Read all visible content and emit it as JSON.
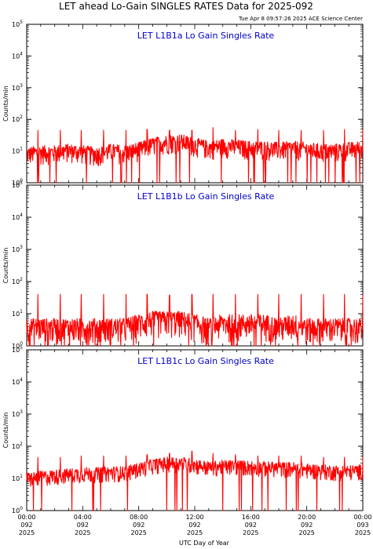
{
  "header": {
    "title": "LET ahead Lo-Gain SINGLES RATES Data for 2025-092",
    "timestamp": "Tue Apr  8 09:57:26 2025 ACE Science Center"
  },
  "xaxis": {
    "label": "UTC Day of Year",
    "ticks": [
      {
        "hour": 0,
        "time": "00:00",
        "doy": "092",
        "year": "2025"
      },
      {
        "hour": 4,
        "time": "04:00",
        "doy": "092",
        "year": "2025"
      },
      {
        "hour": 8,
        "time": "08:00",
        "doy": "092",
        "year": "2025"
      },
      {
        "hour": 12,
        "time": "12:00",
        "doy": "092",
        "year": "2025"
      },
      {
        "hour": 16,
        "time": "16:00",
        "doy": "092",
        "year": "2025"
      },
      {
        "hour": 20,
        "time": "20:00",
        "doy": "092",
        "year": "2025"
      },
      {
        "hour": 24,
        "time": "00:00",
        "doy": "093",
        "year": "2025"
      }
    ]
  },
  "colors": {
    "trace": "#ff0000",
    "label": "#0000cc",
    "axis": "#000000"
  },
  "chart_data": [
    {
      "type": "line",
      "title": "LET L1B1a Lo Gain Singles Rate",
      "ylabel": "Counts/min",
      "yscale": "log",
      "ylim": [
        1,
        100000
      ],
      "xlim": [
        0,
        24
      ],
      "yticks": [
        {
          "value": 1,
          "base": "10",
          "exp": "0"
        },
        {
          "value": 10,
          "base": "10",
          "exp": "1"
        },
        {
          "value": 100,
          "base": "10",
          "exp": "2"
        },
        {
          "value": 1000,
          "base": "10",
          "exp": "3"
        },
        {
          "value": 10000,
          "base": "10",
          "exp": "4"
        },
        {
          "value": 100000,
          "base": "10",
          "exp": "5"
        }
      ],
      "series": [
        {
          "x": [
            0,
            1,
            2,
            3,
            4,
            5,
            6,
            7,
            8,
            9,
            10,
            11,
            12,
            13,
            14,
            15,
            16,
            17,
            18,
            19,
            20,
            21,
            22,
            23,
            24
          ],
          "y": [
            7,
            8,
            8,
            9,
            8,
            7,
            9,
            8,
            10,
            14,
            17,
            18,
            14,
            11,
            13,
            12,
            11,
            11,
            10,
            11,
            10,
            9,
            9,
            10,
            11
          ],
          "spikes_x": [
            0.8,
            2.4,
            3.9,
            5.5,
            7.1,
            8.6,
            10.2,
            11.8,
            13.3,
            14.9,
            16.5,
            18.0,
            19.6,
            21.2,
            22.7,
            24
          ],
          "spikes_y": [
            45,
            45,
            45,
            45,
            45,
            48,
            45,
            45,
            55,
            45,
            48,
            45,
            45,
            45,
            48,
            48
          ],
          "noise_low": 0.45,
          "noise_high": 1.9
        }
      ]
    },
    {
      "type": "line",
      "title": "LET L1B1b Lo Gain Singles Rate",
      "ylabel": "Counts/min",
      "yscale": "log",
      "ylim": [
        1,
        100000
      ],
      "xlim": [
        0,
        24
      ],
      "yticks": [
        {
          "value": 1,
          "base": "10",
          "exp": "0"
        },
        {
          "value": 10,
          "base": "10",
          "exp": "1"
        },
        {
          "value": 100,
          "base": "10",
          "exp": "2"
        },
        {
          "value": 1000,
          "base": "10",
          "exp": "3"
        },
        {
          "value": 10000,
          "base": "10",
          "exp": "4"
        },
        {
          "value": 100000,
          "base": "10",
          "exp": "5"
        }
      ],
      "series": [
        {
          "x": [
            0,
            1,
            2,
            3,
            4,
            5,
            6,
            7,
            8,
            9,
            10,
            11,
            12,
            13,
            14,
            15,
            16,
            17,
            18,
            19,
            20,
            21,
            22,
            23,
            24
          ],
          "y": [
            3,
            3,
            3,
            3,
            3,
            3,
            3,
            3,
            4,
            5,
            5,
            5,
            4,
            3,
            4,
            4,
            4,
            4,
            3,
            4,
            3,
            3,
            3,
            3,
            3
          ],
          "spikes_x": [
            0.8,
            2.4,
            3.9,
            5.5,
            7.1,
            8.6,
            10.2,
            11.8,
            13.3,
            14.9,
            16.5,
            18.0,
            19.6,
            21.2,
            22.7,
            24
          ],
          "spikes_y": [
            40,
            40,
            40,
            40,
            40,
            40,
            38,
            40,
            40,
            40,
            40,
            40,
            40,
            40,
            40,
            40
          ],
          "noise_low": 0.3,
          "noise_high": 2.4
        }
      ]
    },
    {
      "type": "line",
      "title": "LET L1B1c Lo Gain Singles Rate",
      "ylabel": "Counts/min",
      "yscale": "log",
      "ylim": [
        1,
        100000
      ],
      "xlim": [
        0,
        24
      ],
      "yticks": [
        {
          "value": 1,
          "base": "10",
          "exp": "0"
        },
        {
          "value": 10,
          "base": "10",
          "exp": "1"
        },
        {
          "value": 100,
          "base": "10",
          "exp": "2"
        },
        {
          "value": 1000,
          "base": "10",
          "exp": "3"
        },
        {
          "value": 10000,
          "base": "10",
          "exp": "4"
        },
        {
          "value": 100000,
          "base": "10",
          "exp": "5"
        }
      ],
      "series": [
        {
          "x": [
            0,
            1,
            2,
            3,
            4,
            5,
            6,
            7,
            8,
            9,
            10,
            11,
            12,
            13,
            14,
            15,
            16,
            17,
            18,
            19,
            20,
            21,
            22,
            23,
            24
          ],
          "y": [
            9,
            10,
            11,
            12,
            13,
            13,
            14,
            14,
            18,
            24,
            27,
            28,
            24,
            20,
            22,
            22,
            21,
            20,
            19,
            19,
            17,
            16,
            15,
            15,
            16
          ],
          "spikes_x": [
            0.8,
            2.4,
            3.9,
            5.5,
            7.1,
            8.6,
            10.2,
            11.8,
            13.3,
            14.9,
            16.5,
            18.0,
            19.6,
            21.2,
            22.7,
            24
          ],
          "spikes_y": [
            45,
            45,
            50,
            50,
            50,
            55,
            60,
            70,
            60,
            55,
            50,
            50,
            50,
            45,
            45,
            45
          ],
          "noise_low": 0.55,
          "noise_high": 1.7
        }
      ]
    }
  ]
}
